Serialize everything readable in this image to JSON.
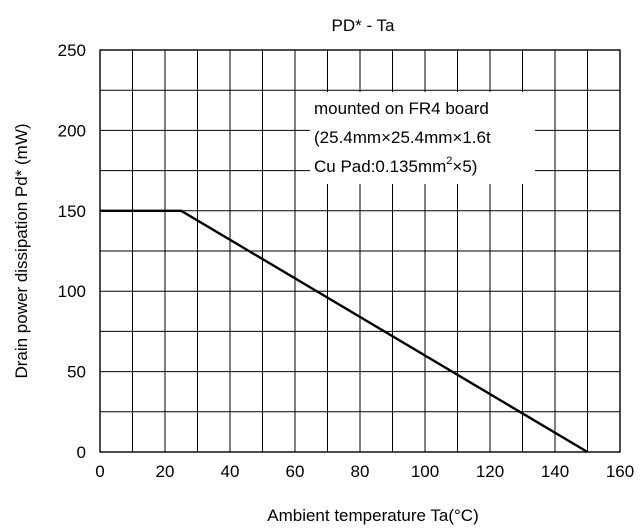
{
  "chart_data": {
    "type": "line",
    "title": "PD* - Ta",
    "xlabel": "Ambient temperature Ta(°C)",
    "ylabel": "Drain power dissipation Pd* (mW)",
    "xlim": [
      0,
      160
    ],
    "ylim": [
      0,
      250
    ],
    "x_ticks": [
      0,
      20,
      40,
      60,
      80,
      100,
      120,
      140,
      160
    ],
    "y_ticks": [
      0,
      50,
      100,
      150,
      200,
      250
    ],
    "x_grid_step": 10,
    "y_grid_step": 25,
    "grid": true,
    "series": [
      {
        "x": [
          0,
          25,
          150
        ],
        "y": [
          150,
          150,
          0
        ]
      }
    ],
    "annotation": {
      "line1": "mounted on FR4 board",
      "line2": "(25.4mm×25.4mm×1.6t",
      "line3_prefix": "Cu Pad:0.135mm",
      "line3_sup": "2",
      "line3_suffix": "×5)"
    }
  }
}
